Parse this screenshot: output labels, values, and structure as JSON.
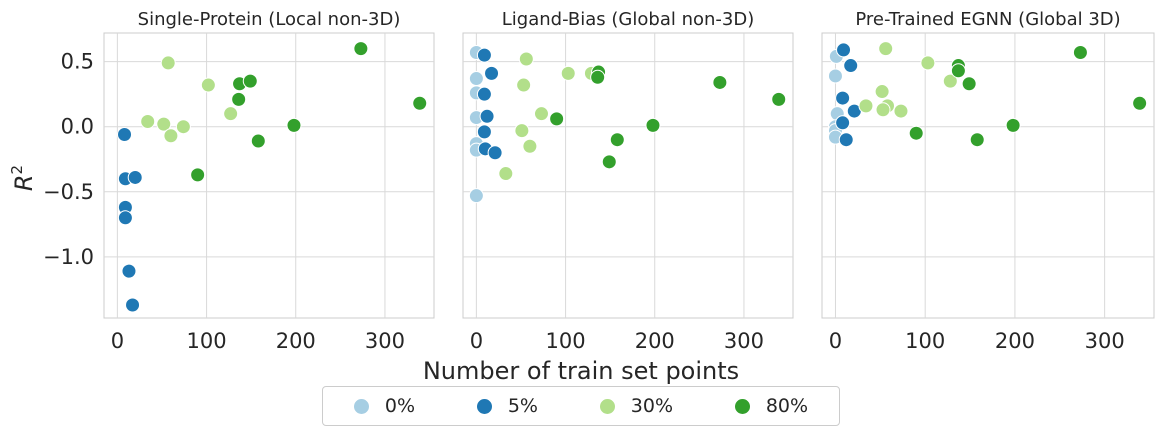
{
  "chart_data": {
    "type": "scatter",
    "xlabel": "Number of train set points",
    "ylabel_main": "R",
    "ylabel_sup": "2",
    "xlim": [
      -15,
      355
    ],
    "ylim": [
      -1.47,
      0.72
    ],
    "xticks": [
      0,
      100,
      200,
      300
    ],
    "xtick_labels": [
      "0",
      "100",
      "200",
      "300"
    ],
    "yticks": [
      0.5,
      0.0,
      -0.5,
      -1.0
    ],
    "ytick_labels": [
      "0.5",
      "0.0",
      "−0.5",
      "−1.0"
    ],
    "grid": true,
    "legend_position": "bottom-center",
    "legend": [
      {
        "label": "0%",
        "color": "#a6cee3"
      },
      {
        "label": "5%",
        "color": "#1f78b4"
      },
      {
        "label": "30%",
        "color": "#b2df8a"
      },
      {
        "label": "80%",
        "color": "#33a02c"
      }
    ],
    "panels": [
      {
        "title": "Single-Protein (Local non-3D)",
        "series": [
          {
            "name": "0%",
            "points": []
          },
          {
            "name": "5%",
            "points": [
              [
                8,
                -0.06
              ],
              [
                9,
                -0.4
              ],
              [
                20,
                -0.39
              ],
              [
                9,
                -0.62
              ],
              [
                9,
                -0.7
              ],
              [
                13,
                -1.11
              ],
              [
                17,
                -1.37
              ]
            ]
          },
          {
            "name": "30%",
            "points": [
              [
                57,
                0.49
              ],
              [
                102,
                0.32
              ],
              [
                34,
                0.04
              ],
              [
                52,
                0.02
              ],
              [
                60,
                -0.07
              ],
              [
                74,
                0.0
              ],
              [
                127,
                0.1
              ]
            ]
          },
          {
            "name": "80%",
            "points": [
              [
                273,
                0.6
              ],
              [
                339,
                0.18
              ],
              [
                137,
                0.33
              ],
              [
                149,
                0.35
              ],
              [
                136,
                0.21
              ],
              [
                198,
                0.01
              ],
              [
                158,
                -0.11
              ],
              [
                90,
                -0.37
              ]
            ]
          }
        ]
      },
      {
        "title": "Ligand-Bias (Global non-3D)",
        "series": [
          {
            "name": "0%",
            "points": [
              [
                0,
                0.57
              ],
              [
                0,
                0.37
              ],
              [
                0,
                0.26
              ],
              [
                0,
                0.07
              ],
              [
                0,
                -0.13
              ],
              [
                0,
                -0.18
              ],
              [
                0,
                -0.53
              ]
            ]
          },
          {
            "name": "5%",
            "points": [
              [
                9,
                0.55
              ],
              [
                17,
                0.41
              ],
              [
                9,
                0.25
              ],
              [
                12,
                0.08
              ],
              [
                9,
                -0.04
              ],
              [
                10,
                -0.17
              ],
              [
                21,
                -0.2
              ]
            ]
          },
          {
            "name": "30%",
            "points": [
              [
                56,
                0.52
              ],
              [
                103,
                0.41
              ],
              [
                129,
                0.41
              ],
              [
                53,
                0.32
              ],
              [
                73,
                0.1
              ],
              [
                51,
                -0.03
              ],
              [
                60,
                -0.15
              ],
              [
                33,
                -0.36
              ]
            ]
          },
          {
            "name": "80%",
            "points": [
              [
                137,
                0.42
              ],
              [
                136,
                0.38
              ],
              [
                273,
                0.34
              ],
              [
                339,
                0.21
              ],
              [
                90,
                0.06
              ],
              [
                198,
                0.01
              ],
              [
                158,
                -0.1
              ],
              [
                149,
                -0.27
              ]
            ]
          }
        ]
      },
      {
        "title": "Pre-Trained EGNN (Global 3D)",
        "series": [
          {
            "name": "0%",
            "points": [
              [
                1,
                0.54
              ],
              [
                0,
                0.39
              ],
              [
                2,
                0.1
              ],
              [
                0,
                0.0
              ],
              [
                0,
                -0.03
              ],
              [
                0,
                -0.08
              ]
            ]
          },
          {
            "name": "5%",
            "points": [
              [
                9,
                0.59
              ],
              [
                17,
                0.47
              ],
              [
                8,
                0.22
              ],
              [
                21,
                0.12
              ],
              [
                8,
                0.03
              ],
              [
                12,
                -0.1
              ]
            ]
          },
          {
            "name": "30%",
            "points": [
              [
                56,
                0.6
              ],
              [
                103,
                0.49
              ],
              [
                128,
                0.35
              ],
              [
                52,
                0.27
              ],
              [
                58,
                0.16
              ],
              [
                34,
                0.16
              ],
              [
                73,
                0.12
              ],
              [
                53,
                0.13
              ]
            ]
          },
          {
            "name": "80%",
            "points": [
              [
                137,
                0.47
              ],
              [
                137,
                0.43
              ],
              [
                273,
                0.57
              ],
              [
                149,
                0.33
              ],
              [
                339,
                0.18
              ],
              [
                90,
                -0.05
              ],
              [
                198,
                0.01
              ],
              [
                158,
                -0.1
              ]
            ]
          }
        ]
      }
    ]
  }
}
